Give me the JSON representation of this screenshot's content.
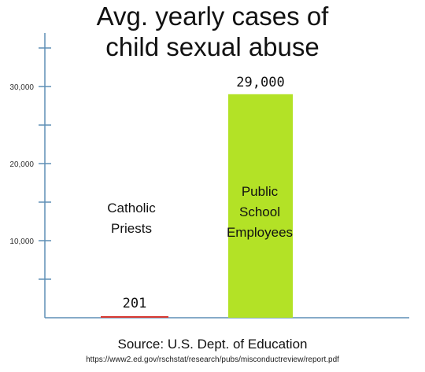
{
  "chart_data": {
    "type": "bar",
    "title_lines": [
      "Avg. yearly cases of",
      "child sexual abuse"
    ],
    "categories": [
      [
        "Catholic",
        "Priests"
      ],
      [
        "Public",
        "School",
        "Employees"
      ]
    ],
    "values": [
      201,
      29000
    ],
    "value_labels": [
      "201",
      "29,000"
    ],
    "yticks": [
      10000,
      20000,
      30000
    ],
    "ytick_labels": [
      "10,000",
      "20,000",
      "30,000"
    ],
    "ylim": [
      0,
      30000
    ],
    "colors": [
      "#d93a32",
      "#b3e226"
    ],
    "axis_color": "#5f8fb5",
    "grid": false,
    "xlabel": "",
    "ylabel": ""
  },
  "source": "Source: U.S. Dept. of Education",
  "url": "https://www2.ed.gov/rschstat/research/pubs/misconductreview/report.pdf"
}
